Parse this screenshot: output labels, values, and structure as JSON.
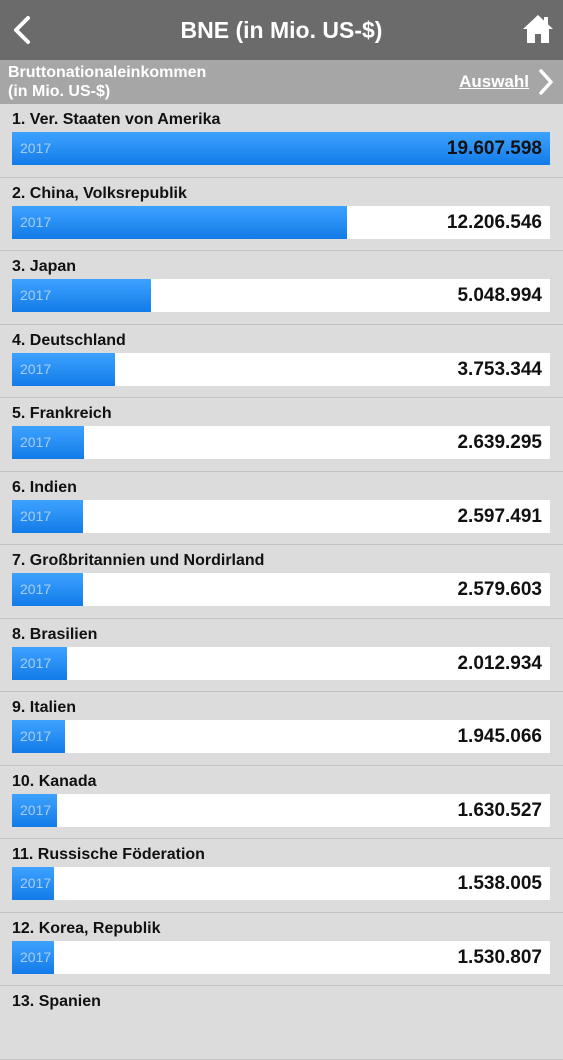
{
  "nav": {
    "title": "BNE (in Mio. US-$)",
    "back_icon": "chevron-left-icon",
    "home_icon": "home-icon"
  },
  "subheader": {
    "label_line1": "Bruttonationaleinkommen",
    "label_line2": "(in Mio. US-$)",
    "select_label": "Auswahl",
    "select_icon": "chevron-right-icon"
  },
  "colors": {
    "navbar": "#6b6b6b",
    "subheader": "#a6a6a6",
    "bar": "#1a84f0",
    "background": "#dcdcdc"
  },
  "max_value": 19607598,
  "rows": [
    {
      "label": "1. Ver. Staaten von Amerika",
      "year": "2017",
      "value_text": "19.607.598",
      "value": 19607598
    },
    {
      "label": "2. China, Volksrepublik",
      "year": "2017",
      "value_text": "12.206.546",
      "value": 12206546
    },
    {
      "label": "3. Japan",
      "year": "2017",
      "value_text": "5.048.994",
      "value": 5048994
    },
    {
      "label": "4. Deutschland",
      "year": "2017",
      "value_text": "3.753.344",
      "value": 3753344
    },
    {
      "label": "5. Frankreich",
      "year": "2017",
      "value_text": "2.639.295",
      "value": 2639295
    },
    {
      "label": "6. Indien",
      "year": "2017",
      "value_text": "2.597.491",
      "value": 2597491
    },
    {
      "label": "7. Großbritannien und Nordirland",
      "year": "2017",
      "value_text": "2.579.603",
      "value": 2579603
    },
    {
      "label": "8. Brasilien",
      "year": "2017",
      "value_text": "2.012.934",
      "value": 2012934
    },
    {
      "label": "9. Italien",
      "year": "2017",
      "value_text": "1.945.066",
      "value": 1945066
    },
    {
      "label": "10. Kanada",
      "year": "2017",
      "value_text": "1.630.527",
      "value": 1630527
    },
    {
      "label": "11. Russische Föderation",
      "year": "2017",
      "value_text": "1.538.005",
      "value": 1538005
    },
    {
      "label": "12. Korea, Republik",
      "year": "2017",
      "value_text": "1.530.807",
      "value": 1530807
    },
    {
      "label": "13. Spanien",
      "year": "",
      "value_text": "",
      "value": null
    }
  ]
}
